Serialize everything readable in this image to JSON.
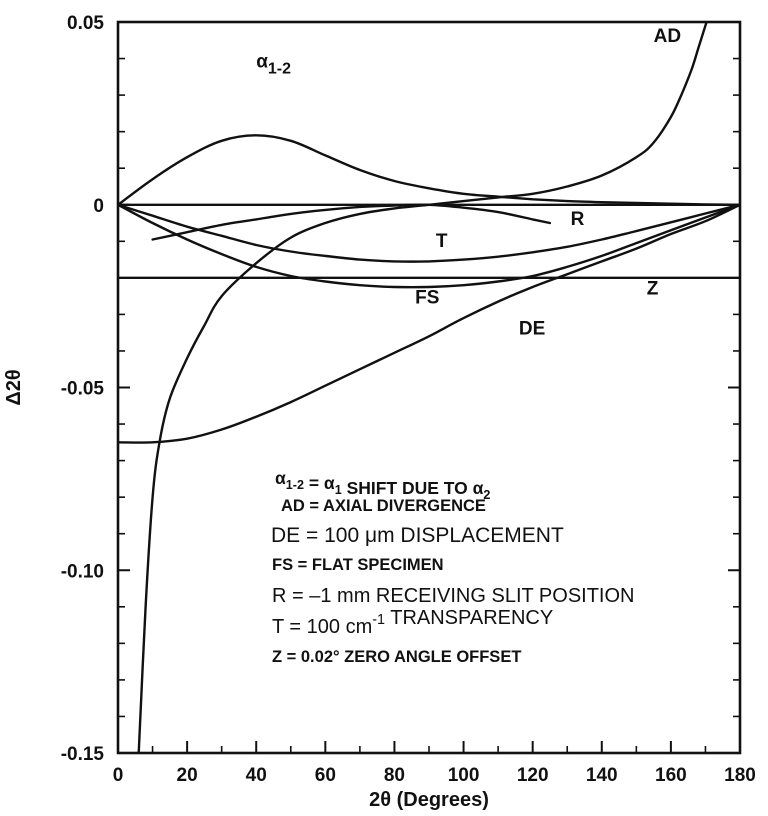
{
  "chart_data": {
    "type": "line",
    "title": "",
    "xlabel": "2θ (Degrees)",
    "ylabel": "Δ2θ",
    "xlim": [
      0,
      180
    ],
    "ylim": [
      -0.15,
      0.05
    ],
    "x_ticks": [
      0,
      20,
      40,
      60,
      80,
      100,
      120,
      140,
      160,
      180
    ],
    "x_tick_labels": [
      "0",
      "20",
      "40",
      "60",
      "80",
      "100",
      "120",
      "140",
      "160",
      "180"
    ],
    "y_ticks": [
      0.05,
      0,
      -0.05,
      -0.1,
      -0.15
    ],
    "y_tick_labels": [
      "0.05",
      "0",
      "-0.05",
      "-0.10",
      "-0.15"
    ],
    "grid": false,
    "series": [
      {
        "name": "α1-2",
        "label": "α",
        "label_sub": "1-2",
        "x": [
          0,
          10,
          20,
          30,
          40,
          50,
          60,
          70,
          80,
          90,
          100,
          110,
          120,
          130,
          140,
          150,
          160,
          170,
          180
        ],
        "y": [
          0,
          0.007,
          0.013,
          0.0175,
          0.019,
          0.0175,
          0.0135,
          0.0095,
          0.0065,
          0.0045,
          0.003,
          0.0022,
          0.0015,
          0.001,
          0.0007,
          0.0005,
          0.0003,
          0.0001,
          0
        ]
      },
      {
        "name": "AD",
        "label": "AD",
        "x": [
          6,
          8,
          10,
          12,
          15,
          20,
          25,
          30,
          40,
          50,
          60,
          70,
          80,
          90,
          100,
          110,
          120,
          130,
          140,
          150,
          155,
          160,
          163,
          166,
          168,
          170,
          171
        ],
        "y": [
          -0.15,
          -0.11,
          -0.08,
          -0.065,
          -0.053,
          -0.042,
          -0.033,
          -0.025,
          -0.016,
          -0.009,
          -0.005,
          -0.0025,
          -0.001,
          0,
          0.001,
          0.002,
          0.003,
          0.005,
          0.008,
          0.013,
          0.017,
          0.024,
          0.03,
          0.037,
          0.043,
          0.049,
          0.052
        ]
      },
      {
        "name": "DE",
        "label": "DE",
        "x": [
          0,
          10,
          20,
          30,
          40,
          50,
          60,
          70,
          80,
          90,
          100,
          110,
          120,
          130,
          140,
          150,
          160,
          170,
          180
        ],
        "y": [
          -0.065,
          -0.065,
          -0.064,
          -0.0615,
          -0.058,
          -0.054,
          -0.0495,
          -0.045,
          -0.0405,
          -0.036,
          -0.031,
          -0.0265,
          -0.0225,
          -0.019,
          -0.0155,
          -0.012,
          -0.008,
          -0.0045,
          0
        ]
      },
      {
        "name": "FS",
        "label": "FS",
        "x": [
          0,
          10,
          20,
          30,
          40,
          50,
          60,
          70,
          80,
          90,
          100,
          110,
          120,
          130,
          140,
          150,
          160,
          170,
          180
        ],
        "y": [
          0,
          -0.005,
          -0.0095,
          -0.0135,
          -0.017,
          -0.0195,
          -0.021,
          -0.022,
          -0.0225,
          -0.0225,
          -0.022,
          -0.021,
          -0.0195,
          -0.017,
          -0.014,
          -0.0105,
          -0.007,
          -0.0035,
          0
        ]
      },
      {
        "name": "T",
        "label": "T",
        "x": [
          0,
          10,
          20,
          30,
          40,
          50,
          60,
          70,
          80,
          90,
          100,
          110,
          120,
          130,
          140,
          150,
          160,
          170,
          180
        ],
        "y": [
          0,
          -0.003,
          -0.006,
          -0.0085,
          -0.011,
          -0.0128,
          -0.014,
          -0.015,
          -0.0155,
          -0.0155,
          -0.015,
          -0.0142,
          -0.013,
          -0.0115,
          -0.0095,
          -0.0072,
          -0.0048,
          -0.0024,
          0
        ]
      },
      {
        "name": "R",
        "label": "R",
        "x": [
          10,
          20,
          30,
          40,
          50,
          60,
          70,
          80,
          90,
          100,
          110,
          120,
          125
        ],
        "y": [
          -0.0095,
          -0.0075,
          -0.0055,
          -0.004,
          -0.0025,
          -0.0014,
          -0.0006,
          -0.0002,
          0,
          -0.0008,
          -0.002,
          -0.004,
          -0.005
        ]
      },
      {
        "name": "Z",
        "label": "Z",
        "x": [
          0,
          180
        ],
        "y": [
          -0.02,
          -0.02
        ]
      },
      {
        "name": "zero",
        "label": "",
        "x": [
          0,
          180
        ],
        "y": [
          0,
          0
        ]
      }
    ],
    "annotations": [
      {
        "parts": [
          [
            "α",
            "n"
          ],
          [
            "1-2",
            "sub"
          ],
          [
            " = ",
            "n"
          ],
          [
            "α",
            "n"
          ],
          [
            "1",
            "sub"
          ],
          [
            " SHIFT DUE TO ",
            "n"
          ],
          [
            "α",
            "n"
          ],
          [
            "2",
            "sub"
          ]
        ]
      },
      {
        "parts": [
          [
            "AD = AXIAL DIVERGENCE",
            "n"
          ]
        ]
      },
      {
        "parts": [
          [
            "DE = 100 μm DISPLACEMENT",
            "n"
          ]
        ]
      },
      {
        "parts": [
          [
            "FS = FLAT SPECIMEN",
            "n"
          ]
        ]
      },
      {
        "parts": [
          [
            "R = –1 mm RECEIVING SLIT POSITION",
            "n"
          ]
        ]
      },
      {
        "parts": [
          [
            "T = 100 cm",
            "n"
          ],
          [
            "-1",
            "sup"
          ],
          [
            " TRANSPARENCY",
            "n"
          ]
        ]
      },
      {
        "parts": [
          [
            "Z  = 0.02°  ZERO ANGLE OFFSET",
            "n"
          ]
        ]
      }
    ]
  }
}
